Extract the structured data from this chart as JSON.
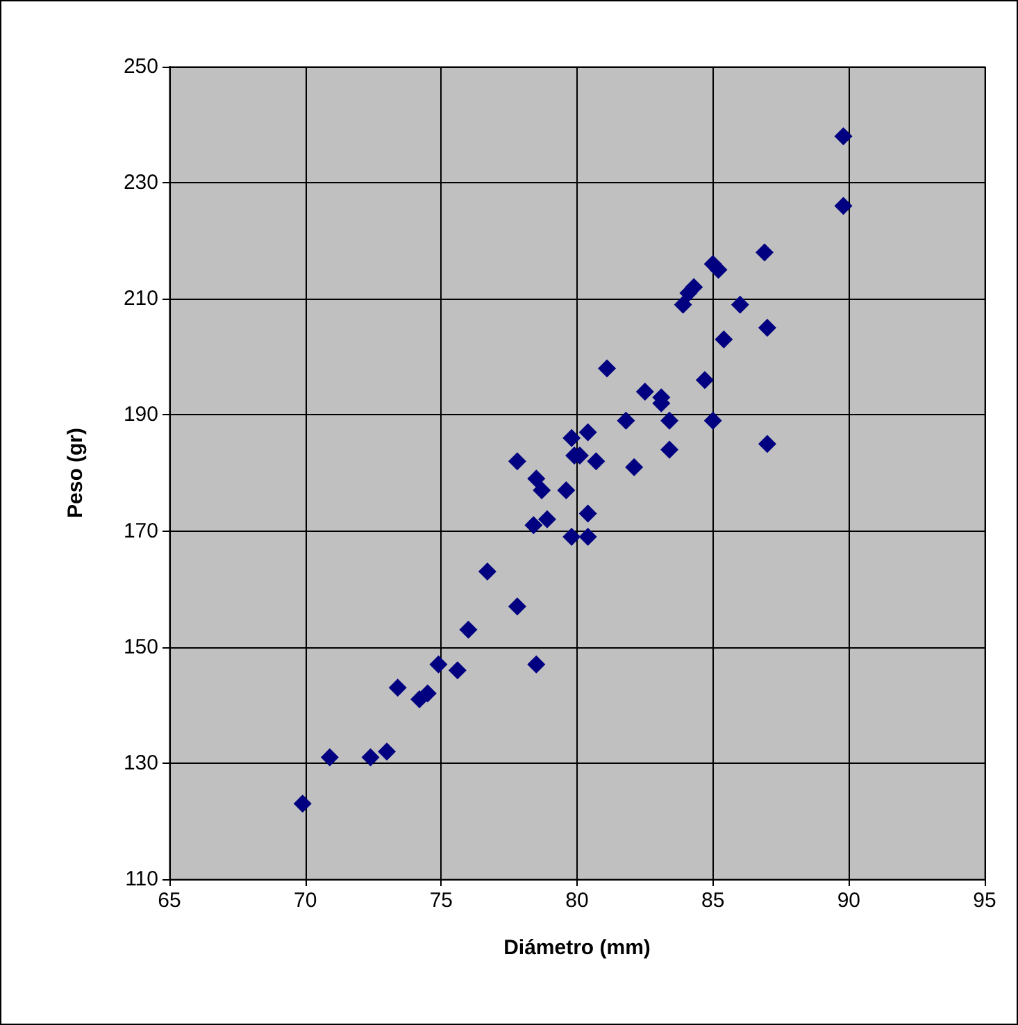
{
  "chart_data": {
    "type": "scatter",
    "xlabel": "Diámetro (mm)",
    "ylabel": "Peso (gr)",
    "x": [
      69.9,
      70.9,
      72.4,
      73.0,
      73.4,
      74.2,
      74.5,
      74.9,
      75.6,
      76.0,
      76.7,
      77.8,
      78.5,
      77.8,
      78.5,
      78.7,
      78.4,
      78.9,
      79.6,
      79.8,
      79.9,
      80.1,
      79.8,
      80.4,
      80.4,
      80.4,
      80.7,
      81.1,
      81.8,
      82.1,
      82.5,
      83.1,
      83.1,
      83.4,
      83.4,
      83.9,
      84.1,
      84.3,
      84.7,
      85.0,
      85.2,
      85.0,
      85.4,
      86.0,
      86.9,
      87.0,
      87.0,
      89.8,
      89.8
    ],
    "values": [
      123,
      131,
      131,
      132,
      143,
      141,
      142,
      147,
      146,
      153,
      163,
      157,
      147,
      182,
      179,
      177,
      171,
      172,
      177,
      186,
      183,
      183,
      169,
      169,
      173,
      187,
      182,
      198,
      189,
      181,
      194,
      193,
      192,
      189,
      184,
      209,
      211,
      212,
      196,
      216,
      215,
      189,
      203,
      209,
      218,
      205,
      185,
      238,
      226
    ],
    "color": "#000080",
    "marker": "diamond",
    "grid": true,
    "xlim": [
      65,
      95
    ],
    "xticks": [
      65,
      70,
      75,
      80,
      85,
      90,
      95
    ],
    "ylim": [
      110,
      250
    ],
    "yticks": [
      110,
      130,
      150,
      170,
      190,
      210,
      230,
      250
    ]
  }
}
